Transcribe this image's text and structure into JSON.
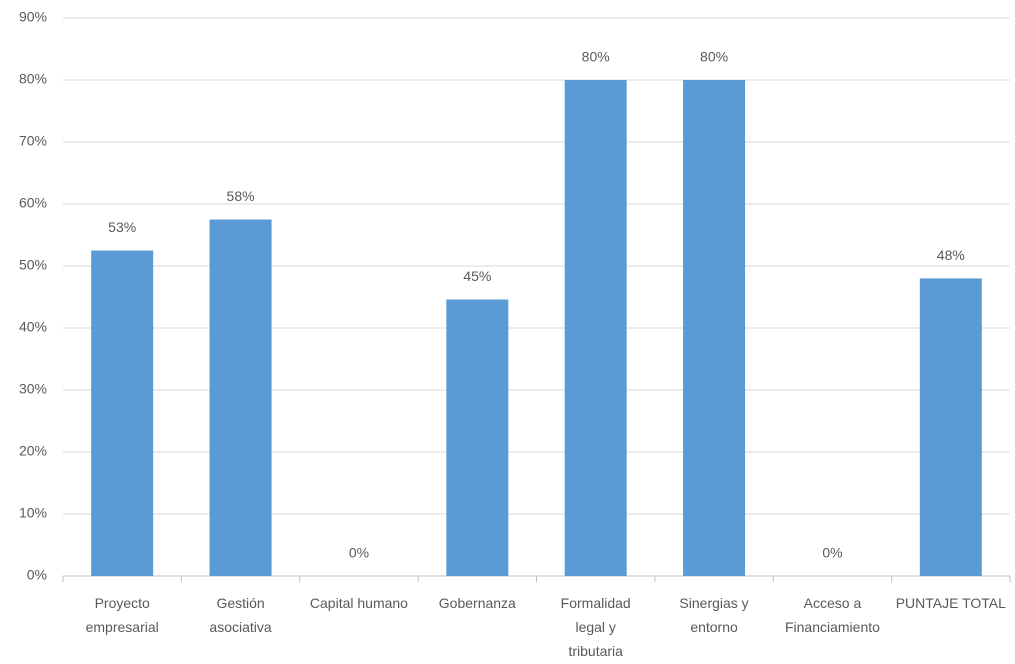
{
  "chart_data": {
    "type": "bar",
    "categories": [
      "Proyecto empresarial",
      "Gestión asociativa",
      "Capital humano",
      "Gobernanza",
      "Formalidad legal y tributaria",
      "Sinergias y entorno",
      "Acceso a Financiamiento",
      "PUNTAJE TOTAL"
    ],
    "values": [
      52.5,
      57.5,
      0,
      44.6,
      80,
      80,
      0,
      48
    ],
    "value_labels": [
      "53%",
      "58%",
      "0%",
      "45%",
      "80%",
      "80%",
      "0%",
      "48%"
    ],
    "color": "#5b9bd5",
    "ylim": [
      0,
      90
    ],
    "yticks": [
      {
        "value": 0,
        "label": "0%"
      },
      {
        "value": 10,
        "label": "10%"
      },
      {
        "value": 20,
        "label": "20%"
      },
      {
        "value": 30,
        "label": "30%"
      },
      {
        "value": 40,
        "label": "40%"
      },
      {
        "value": 50,
        "label": "50%"
      },
      {
        "value": 60,
        "label": "60%"
      },
      {
        "value": 70,
        "label": "70%"
      },
      {
        "value": 80,
        "label": "80%"
      },
      {
        "value": 90,
        "label": "90%"
      }
    ],
    "grid": true
  }
}
